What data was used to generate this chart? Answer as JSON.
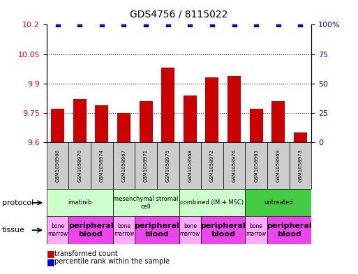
{
  "title": "GDS4756 / 8115022",
  "samples": [
    "GSM1058966",
    "GSM1058970",
    "GSM1058974",
    "GSM1058967",
    "GSM1058971",
    "GSM1058975",
    "GSM1058968",
    "GSM1058972",
    "GSM1058976",
    "GSM1058965",
    "GSM1058969",
    "GSM1058973"
  ],
  "transformed_counts": [
    9.77,
    9.82,
    9.79,
    9.75,
    9.81,
    9.98,
    9.84,
    9.93,
    9.94,
    9.77,
    9.81,
    9.65
  ],
  "percentile_ranks": [
    100,
    100,
    100,
    100,
    100,
    100,
    100,
    100,
    100,
    100,
    100,
    100
  ],
  "ylim_left": [
    9.6,
    10.2
  ],
  "ylim_right": [
    0,
    100
  ],
  "yticks_left": [
    9.6,
    9.75,
    9.9,
    10.05,
    10.2
  ],
  "yticks_right": [
    0,
    25,
    50,
    75,
    100
  ],
  "protocols": [
    {
      "label": "imatinib",
      "start": 0,
      "end": 3,
      "color": "#ccffcc"
    },
    {
      "label": "mesenchymal stromal\ncell",
      "start": 3,
      "end": 6,
      "color": "#ccffcc"
    },
    {
      "label": "combined (IM + MSC)",
      "start": 6,
      "end": 9,
      "color": "#ccffcc"
    },
    {
      "label": "untreated",
      "start": 9,
      "end": 12,
      "color": "#44cc44"
    }
  ],
  "tissues": [
    {
      "label": "bone\nmarrow",
      "start": 0,
      "end": 1,
      "color": "#ffaaff"
    },
    {
      "label": "peripheral\nblood",
      "start": 1,
      "end": 3,
      "color": "#ee44ee"
    },
    {
      "label": "bone\nmarrow",
      "start": 3,
      "end": 4,
      "color": "#ffaaff"
    },
    {
      "label": "peripheral\nblood",
      "start": 4,
      "end": 6,
      "color": "#ee44ee"
    },
    {
      "label": "bone\nmarrow",
      "start": 6,
      "end": 7,
      "color": "#ffaaff"
    },
    {
      "label": "peripheral\nblood",
      "start": 7,
      "end": 9,
      "color": "#ee44ee"
    },
    {
      "label": "bone\nmarrow",
      "start": 9,
      "end": 10,
      "color": "#ffaaff"
    },
    {
      "label": "peripheral\nblood",
      "start": 10,
      "end": 12,
      "color": "#ee44ee"
    }
  ],
  "bar_color": "#cc0000",
  "dot_color": "#0000cc",
  "bg_color": "#ffffff",
  "sample_bg_color": "#cccccc"
}
